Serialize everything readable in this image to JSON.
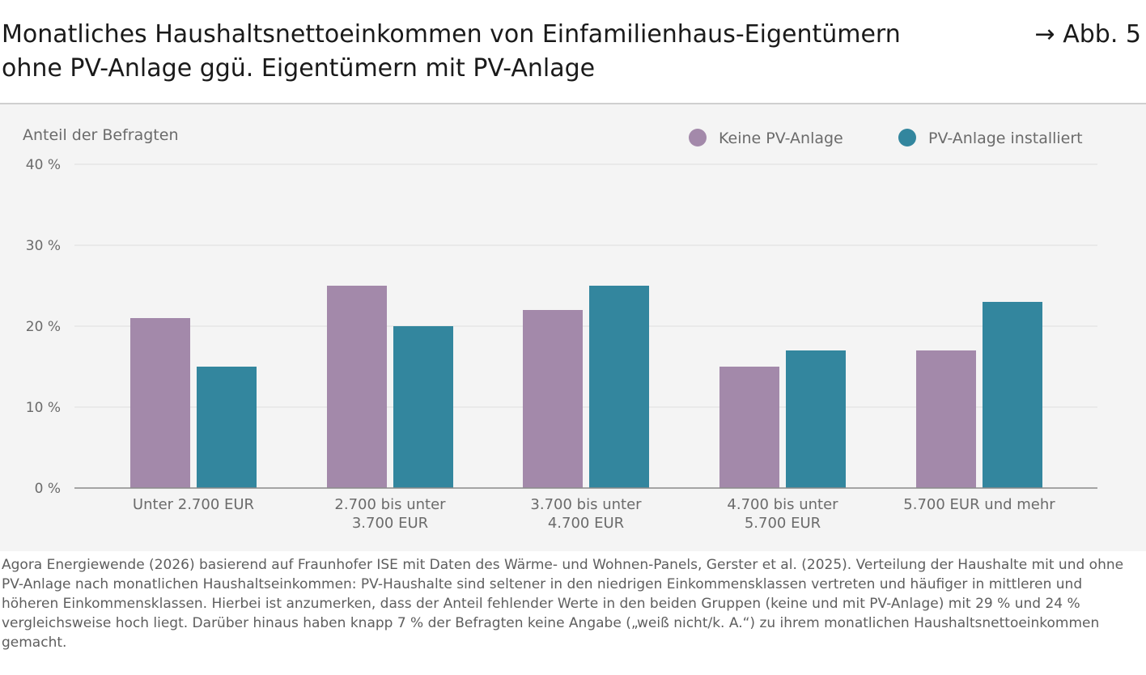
{
  "header": {
    "title_line1": "Monatliches Haushaltsnettoeinkommen von Einfamilienhaus-Eigentümern",
    "title_line2": "ohne PV-Anlage ggü. Eigentümern mit PV-Anlage",
    "figure_ref": "→ Abb. 5"
  },
  "chart_data": {
    "type": "bar",
    "title": "",
    "ylabel": "Anteil der Befragten",
    "xlabel": "",
    "categories": [
      [
        "Unter 2.700 EUR"
      ],
      [
        "2.700 bis unter",
        "3.700 EUR"
      ],
      [
        "3.700 bis unter",
        "4.700 EUR"
      ],
      [
        "4.700 bis unter",
        "5.700 EUR"
      ],
      [
        "5.700 EUR und mehr"
      ]
    ],
    "series": [
      {
        "name": "Keine PV-Anlage",
        "color": "#a389aa",
        "values": [
          21,
          25,
          22,
          15,
          17
        ]
      },
      {
        "name": "PV-Anlage installiert",
        "color": "#33869e",
        "values": [
          15,
          20,
          25,
          17,
          23
        ]
      }
    ],
    "ylim": [
      0,
      40
    ],
    "yticks": [
      0,
      10,
      20,
      30,
      40
    ],
    "ytick_labels": [
      "0 %",
      "10 %",
      "20 %",
      "30 %",
      "40 %"
    ],
    "grid": true,
    "legend_position": "top-right"
  },
  "source_text": "Agora Energiewende (2026) basierend auf Fraunhofer ISE mit Daten des Wärme- und Wohnen-Panels, Gerster et al. (2025). Verteilung der Haushalte mit und ohne PV-Anlage nach monatlichen Haushaltseinkommen: PV-Haushalte sind seltener in den niedrigen Einkommensklassen vertreten und häufiger in mittleren und höheren Einkommensklassen. Hierbei ist anzumerken, dass der Anteil fehlender Werte in den beiden Gruppen (keine und mit PV-Anlage) mit 29 % und 24 % vergleichsweise hoch liegt. Darüber hinaus haben knapp 7 % der Befragten keine Angabe („weiß nicht/k. A.“) zu ihrem monatlichen Haushaltsnettoeinkommen gemacht."
}
